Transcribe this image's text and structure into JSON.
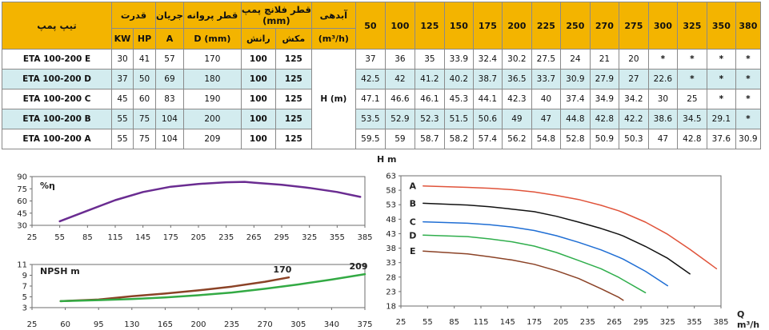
{
  "table": {
    "headers": {
      "type": "تیپ پمپ",
      "power": "قدرت",
      "current": "جریان",
      "impeller": "قطر پروانه",
      "flange": "قطر فلانچ پمپ",
      "flange_unit": "(mm)",
      "flow": "آبدهی",
      "kw": "KW",
      "hp": "HP",
      "amp": "A",
      "dmm": "D (mm)",
      "discharge": "رانش",
      "suction": "مکش",
      "flow_unit": "(m³/h)"
    },
    "flows": [
      "50",
      "100",
      "125",
      "150",
      "175",
      "200",
      "225",
      "250",
      "270",
      "275",
      "300",
      "325",
      "350",
      "380"
    ],
    "head_label": "H (m)",
    "rows": [
      {
        "model": "ETA 100-200 E",
        "kw": "30",
        "hp": "41",
        "amp": "57",
        "d": "170",
        "discharge": "100",
        "suction": "125",
        "heads": [
          "37",
          "36",
          "35",
          "33.9",
          "32.4",
          "30.2",
          "27.5",
          "24",
          "21",
          "20",
          "*",
          "*",
          "*",
          "*"
        ]
      },
      {
        "model": "ETA 100-200 D",
        "kw": "37",
        "hp": "50",
        "amp": "69",
        "d": "180",
        "discharge": "100",
        "suction": "125",
        "heads": [
          "42.5",
          "42",
          "41.2",
          "40.2",
          "38.7",
          "36.5",
          "33.7",
          "30.9",
          "27.9",
          "27",
          "22.6",
          "*",
          "*",
          "*"
        ]
      },
      {
        "model": "ETA 100-200 C",
        "kw": "45",
        "hp": "60",
        "amp": "83",
        "d": "190",
        "discharge": "100",
        "suction": "125",
        "heads": [
          "47.1",
          "46.6",
          "46.1",
          "45.3",
          "44.1",
          "42.3",
          "40",
          "37.4",
          "34.9",
          "34.2",
          "30",
          "25",
          "*",
          "*"
        ]
      },
      {
        "model": "ETA 100-200 B",
        "kw": "55",
        "hp": "75",
        "amp": "104",
        "d": "200",
        "discharge": "100",
        "suction": "125",
        "heads": [
          "53.5",
          "52.9",
          "52.3",
          "51.5",
          "50.6",
          "49",
          "47",
          "44.8",
          "42.8",
          "42.2",
          "38.6",
          "34.5",
          "29.1",
          "*"
        ]
      },
      {
        "model": "ETA 100-200 A",
        "kw": "55",
        "hp": "75",
        "amp": "104",
        "d": "209",
        "discharge": "100",
        "suction": "125",
        "heads": [
          "59.5",
          "59",
          "58.7",
          "58.2",
          "57.4",
          "56.2",
          "54.8",
          "52.8",
          "50.9",
          "50.3",
          "47",
          "42.8",
          "37.6",
          "30.9"
        ]
      }
    ],
    "colors": {
      "header": "#f3b400",
      "alt_row": "#d3ecef",
      "border": "#8a8a8a"
    }
  },
  "chart_data": [
    {
      "type": "line",
      "name": "efficiency",
      "ylabel": "%η",
      "xlim": [
        25,
        385
      ],
      "ylim": [
        30,
        90
      ],
      "xticks": [
        "25",
        "55",
        "85",
        "115",
        "145",
        "175",
        "205",
        "235",
        "265",
        "295",
        "325",
        "355",
        "385"
      ],
      "yticks": [
        "90",
        "75",
        "60",
        "45",
        "30"
      ],
      "series": [
        {
          "color": "#6a2c91",
          "points": [
            [
              55,
              35
            ],
            [
              85,
              48
            ],
            [
              115,
              61
            ],
            [
              145,
              71
            ],
            [
              175,
              77.5
            ],
            [
              205,
              81
            ],
            [
              235,
              83
            ],
            [
              255,
              83.5
            ],
            [
              265,
              82.5
            ],
            [
              295,
              80
            ],
            [
              325,
              76
            ],
            [
              355,
              71
            ],
            [
              380,
              65
            ]
          ]
        }
      ]
    },
    {
      "type": "line",
      "name": "npsh",
      "ylabel": "NPSH m",
      "xlim": [
        25,
        375
      ],
      "ylim": [
        3,
        11
      ],
      "xticks": [
        "25",
        "60",
        "95",
        "130",
        "165",
        "200",
        "235",
        "270",
        "305",
        "340",
        "375"
      ],
      "yticks": [
        "11",
        "9",
        "7",
        "5",
        "3"
      ],
      "series": [
        {
          "name": "170",
          "color": "#8b4226",
          "points": [
            [
              55,
              4.2
            ],
            [
              95,
              4.5
            ],
            [
              130,
              5.1
            ],
            [
              165,
              5.6
            ],
            [
              200,
              6.2
            ],
            [
              235,
              6.9
            ],
            [
              270,
              7.8
            ],
            [
              295,
              8.6
            ]
          ]
        },
        {
          "name": "209",
          "color": "#33aa44",
          "points": [
            [
              55,
              4.2
            ],
            [
              95,
              4.4
            ],
            [
              130,
              4.6
            ],
            [
              165,
              4.9
            ],
            [
              200,
              5.3
            ],
            [
              235,
              5.8
            ],
            [
              270,
              6.5
            ],
            [
              305,
              7.3
            ],
            [
              340,
              8.2
            ],
            [
              375,
              9.2
            ]
          ]
        }
      ]
    },
    {
      "type": "line",
      "name": "head",
      "ylabel": "H m",
      "xlabel": "Q",
      "xunit": "m³/h",
      "xlim": [
        25,
        385
      ],
      "ylim": [
        18,
        63
      ],
      "xticks": [
        "25",
        "55",
        "85",
        "115",
        "145",
        "175",
        "205",
        "235",
        "265",
        "295",
        "325",
        "355",
        "385"
      ],
      "yticks": [
        "63",
        "58",
        "53",
        "48",
        "43",
        "38",
        "33",
        "28",
        "23",
        "18"
      ],
      "series": [
        {
          "name": "A",
          "color": "#e0533a",
          "points": [
            [
              50,
              59.5
            ],
            [
              100,
              59
            ],
            [
              125,
              58.7
            ],
            [
              150,
              58.2
            ],
            [
              175,
              57.4
            ],
            [
              200,
              56.2
            ],
            [
              225,
              54.8
            ],
            [
              250,
              52.8
            ],
            [
              270,
              50.9
            ],
            [
              275,
              50.3
            ],
            [
              300,
              47
            ],
            [
              325,
              42.8
            ],
            [
              350,
              37.6
            ],
            [
              380,
              30.9
            ]
          ]
        },
        {
          "name": "B",
          "color": "#111111",
          "points": [
            [
              50,
              53.5
            ],
            [
              100,
              52.9
            ],
            [
              125,
              52.3
            ],
            [
              150,
              51.5
            ],
            [
              175,
              50.6
            ],
            [
              200,
              49
            ],
            [
              225,
              47
            ],
            [
              250,
              44.8
            ],
            [
              270,
              42.8
            ],
            [
              275,
              42.2
            ],
            [
              300,
              38.6
            ],
            [
              325,
              34.5
            ],
            [
              350,
              29.1
            ]
          ]
        },
        {
          "name": "C",
          "color": "#1f6ed4",
          "points": [
            [
              50,
              47.1
            ],
            [
              100,
              46.6
            ],
            [
              125,
              46.1
            ],
            [
              150,
              45.3
            ],
            [
              175,
              44.1
            ],
            [
              200,
              42.3
            ],
            [
              225,
              40
            ],
            [
              250,
              37.4
            ],
            [
              270,
              34.9
            ],
            [
              275,
              34.2
            ],
            [
              300,
              30
            ],
            [
              325,
              25
            ]
          ]
        },
        {
          "name": "D",
          "color": "#2fae4c",
          "points": [
            [
              50,
              42.5
            ],
            [
              100,
              42
            ],
            [
              125,
              41.2
            ],
            [
              150,
              40.2
            ],
            [
              175,
              38.7
            ],
            [
              200,
              36.5
            ],
            [
              225,
              33.7
            ],
            [
              250,
              30.9
            ],
            [
              270,
              27.9
            ],
            [
              275,
              27
            ],
            [
              300,
              22.6
            ]
          ]
        },
        {
          "name": "E",
          "color": "#8b4226",
          "points": [
            [
              50,
              37
            ],
            [
              100,
              36
            ],
            [
              125,
              35
            ],
            [
              150,
              33.9
            ],
            [
              175,
              32.4
            ],
            [
              200,
              30.2
            ],
            [
              225,
              27.5
            ],
            [
              250,
              24
            ],
            [
              270,
              21
            ],
            [
              275,
              20
            ]
          ]
        }
      ]
    }
  ]
}
